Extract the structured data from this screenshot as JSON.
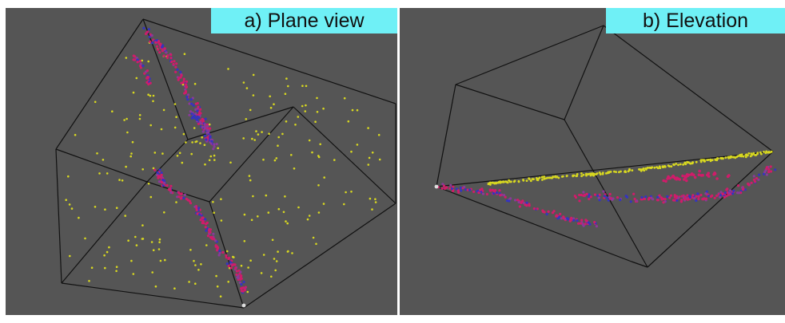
{
  "panels": [
    {
      "id": "a",
      "label": "a) Plane view"
    },
    {
      "id": "b",
      "label": "b) Elevation"
    }
  ],
  "colors": {
    "background": "#555555",
    "label_background": "#6ff0f6",
    "edges": "#111111",
    "yellow_points": "#d8d820",
    "magenta_points": "#d01c6a",
    "blue_points": "#3434c0",
    "purple_points": "#8a3a9a"
  }
}
